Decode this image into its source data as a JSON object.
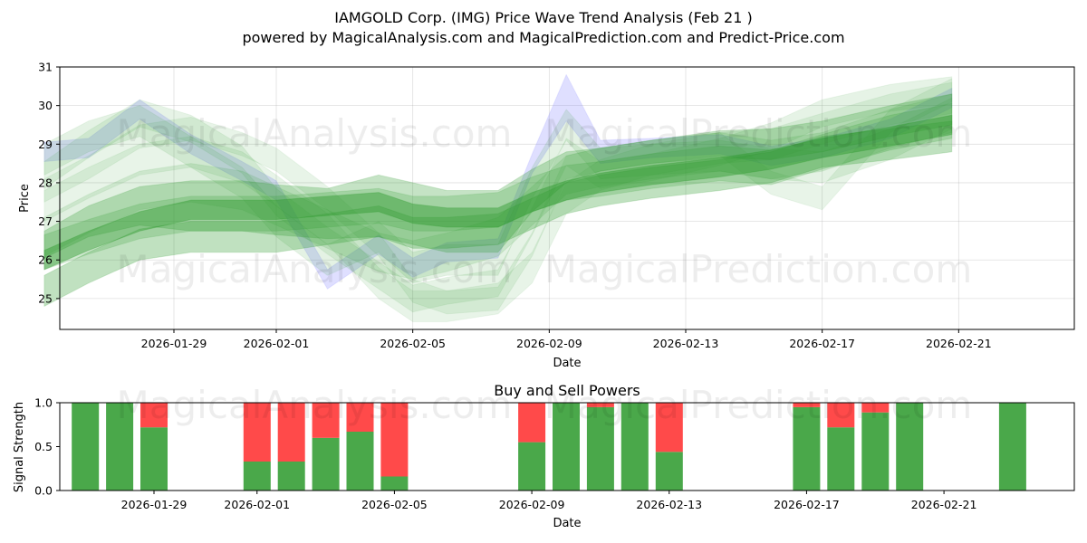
{
  "colors": {
    "green": "#2e9a2e",
    "blue": "#8080ff",
    "buy": "#4aa84a",
    "sell": "#ff4a4a"
  },
  "watermarks": [
    "MagicalAnalysis.com",
    "MagicalPrediction.com"
  ],
  "chart_data": [
    {
      "type": "area",
      "title": "IAMGOLD Corp. (IMG) Price Wave Trend Analysis (Feb 21 )",
      "subtitle": "powered by MagicalAnalysis.com and MagicalPrediction.com and Predict-Price.com",
      "xlabel": "Date",
      "ylabel": "Price",
      "ylim": [
        24.2,
        31
      ],
      "yticks": [
        "25",
        "26",
        "27",
        "28",
        "29",
        "30",
        "31"
      ],
      "xticks": [
        "2026-01-29",
        "2026-02-01",
        "2026-02-05",
        "2026-02-09",
        "2026-02-13",
        "2026-02-17",
        "2026-02-21"
      ],
      "grid": true,
      "series": [
        {
          "name": "wave-1",
          "color": "blue",
          "x": [
            -3.8,
            -2.5,
            -1,
            0.5,
            2,
            3,
            4.5,
            6,
            7,
            8,
            9.5,
            10.5,
            11.5,
            12.5,
            14,
            16,
            17.5,
            19,
            21,
            22.8
          ],
          "values": [
            28.8,
            28.9,
            29.9,
            29.0,
            28.3,
            27.8,
            25.5,
            26.4,
            25.8,
            26.2,
            26.3,
            28.5,
            30.2,
            28.8,
            28.9,
            29.0,
            28.7,
            28.9,
            29.4,
            30.2
          ],
          "width": [
            0.5,
            0.5,
            0.5,
            0.5,
            0.5,
            0.5,
            0.5,
            0.5,
            0.5,
            0.5,
            0.5,
            0.5,
            1.2,
            0.6,
            0.5,
            0.5,
            0.5,
            0.5,
            0.5,
            0.5
          ],
          "opacity": 0.25
        },
        {
          "name": "wave-2",
          "color": "green",
          "x": [
            -3.8,
            -2.5,
            -1,
            0.5,
            2,
            3,
            4.5,
            6,
            7,
            8,
            9.5,
            10.5,
            11.5,
            12.5,
            14,
            16,
            17.5,
            19,
            21,
            22.8
          ],
          "values": [
            28.6,
            29.2,
            29.6,
            28.8,
            28.0,
            27.0,
            26.0,
            26.6,
            25.8,
            26.0,
            26.0,
            28.0,
            29.5,
            28.5,
            28.6,
            28.7,
            28.5,
            28.4,
            29.0,
            29.8
          ],
          "width": [
            0.8,
            0.8,
            0.8,
            0.8,
            0.8,
            0.8,
            0.8,
            0.8,
            0.8,
            0.8,
            0.8,
            0.8,
            0.8,
            0.8,
            0.8,
            0.8,
            0.8,
            0.8,
            0.8,
            0.8
          ],
          "opacity": 0.13
        },
        {
          "name": "wave-3",
          "color": "green",
          "x": [
            -3.8,
            -2.5,
            -1,
            0.5,
            2,
            3,
            4.5,
            6,
            7,
            8,
            9.5,
            10.5,
            11.5,
            12.5,
            14,
            16,
            17.5,
            19,
            21,
            22.8
          ],
          "values": [
            28.2,
            29.0,
            29.8,
            29.4,
            28.6,
            27.5,
            26.5,
            25.6,
            25.0,
            25.2,
            25.4,
            27.0,
            28.8,
            28.2,
            28.4,
            28.8,
            29.2,
            29.8,
            30.2,
            30.4
          ],
          "width": [
            0.7,
            0.7,
            0.7,
            0.7,
            0.7,
            0.7,
            0.7,
            0.7,
            0.7,
            0.7,
            0.7,
            0.7,
            0.7,
            0.7,
            0.7,
            0.7,
            0.7,
            0.7,
            0.7,
            0.7
          ],
          "opacity": 0.12
        },
        {
          "name": "wave-4",
          "color": "green",
          "x": [
            -3.8,
            -2.5,
            -1,
            0.5,
            2,
            3,
            4.5,
            6,
            7,
            8,
            9.5,
            10.5,
            11.5,
            12.5,
            14,
            16,
            17.5,
            19,
            21,
            22.8
          ],
          "values": [
            27.8,
            28.4,
            29.2,
            29.4,
            29.0,
            28.6,
            27.6,
            26.4,
            25.2,
            24.9,
            25.0,
            26.4,
            28.4,
            28.6,
            28.8,
            29.0,
            28.0,
            27.6,
            29.6,
            30.4
          ],
          "width": [
            0.6,
            0.6,
            0.6,
            0.6,
            0.6,
            0.6,
            0.6,
            0.6,
            0.6,
            0.6,
            0.6,
            0.6,
            0.6,
            0.6,
            0.6,
            0.6,
            0.6,
            0.6,
            0.6,
            0.6
          ],
          "opacity": 0.11
        },
        {
          "name": "wave-5",
          "color": "green",
          "x": [
            -3.8,
            -2.5,
            -1,
            0.5,
            2,
            3,
            4.5,
            6,
            7,
            8,
            9.5,
            10.5,
            11.5,
            12.5,
            14,
            16,
            17.5,
            19,
            21,
            22.8
          ],
          "values": [
            27.4,
            28.0,
            28.6,
            28.8,
            28.4,
            27.8,
            26.8,
            25.4,
            24.8,
            24.8,
            25.0,
            25.8,
            27.6,
            28.2,
            28.6,
            28.9,
            29.0,
            29.4,
            29.9,
            30.2
          ],
          "width": [
            0.8,
            0.8,
            0.8,
            0.8,
            0.8,
            0.8,
            0.8,
            0.8,
            0.8,
            0.8,
            0.8,
            0.8,
            0.8,
            0.8,
            0.8,
            0.8,
            0.8,
            0.8,
            0.8,
            0.8
          ],
          "opacity": 0.11
        },
        {
          "name": "wave-6",
          "color": "green",
          "x": [
            -3.8,
            -2.5,
            -1,
            0.5,
            2,
            3,
            4.5,
            6,
            7,
            8,
            9.5,
            10.5,
            11.5,
            12.5,
            14,
            16,
            17.5,
            19,
            21,
            22.8
          ],
          "values": [
            26.6,
            27.2,
            27.8,
            28.0,
            27.8,
            27.4,
            26.8,
            26.2,
            26.0,
            26.2,
            26.6,
            27.4,
            28.2,
            28.4,
            28.6,
            28.8,
            28.6,
            28.8,
            29.4,
            29.8
          ],
          "width": [
            1.0,
            1.0,
            1.0,
            1.0,
            1.0,
            1.0,
            1.0,
            1.0,
            1.0,
            1.0,
            1.0,
            1.0,
            1.0,
            1.0,
            1.0,
            1.0,
            1.0,
            1.0,
            1.0,
            1.0
          ],
          "opacity": 0.15
        },
        {
          "name": "wave-7",
          "color": "green",
          "x": [
            -3.8,
            -2.5,
            -1,
            0.5,
            2,
            3,
            4.5,
            6,
            7,
            8,
            9.5,
            10.5,
            11.5,
            12.5,
            14,
            16,
            17.5,
            19,
            21,
            22.8
          ],
          "values": [
            26.4,
            27.0,
            27.4,
            27.4,
            27.4,
            27.3,
            27.2,
            27.4,
            27.2,
            27.0,
            27.0,
            27.8,
            28.4,
            28.6,
            28.8,
            29.0,
            29.0,
            29.2,
            29.6,
            29.9
          ],
          "width": [
            0.7,
            0.8,
            1.0,
            1.3,
            1.3,
            1.3,
            1.3,
            1.6,
            1.6,
            1.6,
            1.6,
            1.1,
            0.8,
            0.6,
            0.6,
            0.7,
            0.8,
            0.8,
            0.8,
            0.8
          ],
          "opacity": 0.28
        },
        {
          "name": "wave-8",
          "color": "green",
          "x": [
            -3.8,
            -2.5,
            -1,
            0.5,
            2,
            3,
            4.5,
            6,
            7,
            8,
            9.5,
            10.5,
            11.5,
            12.5,
            14,
            16,
            17.5,
            19,
            21,
            22.8
          ],
          "values": [
            25.2,
            25.8,
            26.4,
            26.6,
            26.6,
            26.6,
            26.8,
            27.0,
            26.7,
            26.7,
            26.8,
            27.2,
            27.6,
            27.8,
            28.0,
            28.2,
            28.4,
            28.8,
            29.0,
            29.2
          ],
          "width": [
            0.8,
            0.8,
            0.8,
            0.8,
            0.8,
            0.8,
            0.8,
            0.8,
            0.8,
            0.8,
            0.8,
            0.8,
            0.8,
            0.8,
            0.8,
            0.8,
            0.8,
            0.8,
            0.8,
            0.8
          ],
          "opacity": 0.3
        },
        {
          "name": "wave-9",
          "color": "green",
          "x": [
            -3.8,
            -2.5,
            -1,
            0.5,
            2,
            3,
            4.5,
            6,
            7,
            8,
            9.5,
            10.5,
            11.5,
            12.5,
            14,
            16,
            17.5,
            19,
            21,
            22.8
          ],
          "values": [
            26.0,
            26.5,
            27.0,
            27.3,
            27.3,
            27.3,
            27.4,
            27.5,
            27.2,
            27.1,
            27.1,
            27.5,
            27.8,
            28.0,
            28.2,
            28.4,
            28.6,
            28.9,
            29.2,
            29.5
          ],
          "width": [
            0.5,
            0.5,
            0.5,
            0.5,
            0.5,
            0.5,
            0.5,
            0.5,
            0.5,
            0.5,
            0.5,
            0.5,
            0.5,
            0.5,
            0.5,
            0.5,
            0.5,
            0.5,
            0.5,
            0.5
          ],
          "opacity": 0.45
        },
        {
          "name": "wave-10",
          "color": "green",
          "x": [
            -3.8,
            -2.5,
            -1,
            0.5,
            2,
            3,
            4.5,
            6,
            7,
            8,
            9.5,
            10.5,
            11.5,
            12.5,
            14,
            16,
            17.5,
            19,
            21,
            22.8
          ],
          "values": [
            26.2,
            26.6,
            27.0,
            27.2,
            27.2,
            27.2,
            27.3,
            27.4,
            27.2,
            27.2,
            27.3,
            27.7,
            28.0,
            28.1,
            28.3,
            28.5,
            28.4,
            28.8,
            29.3,
            29.6
          ],
          "width": [
            0.9,
            0.9,
            0.9,
            0.9,
            0.9,
            0.9,
            0.9,
            0.9,
            0.9,
            0.9,
            0.9,
            0.9,
            0.9,
            0.9,
            0.9,
            0.9,
            0.9,
            0.9,
            0.9,
            0.9
          ],
          "opacity": 0.22
        }
      ]
    },
    {
      "type": "bar",
      "title": "Buy and Sell Powers",
      "xlabel": "Date",
      "ylabel": "Signal Strength",
      "ylim": [
        0,
        1
      ],
      "yticks": [
        "0.0",
        "0.5",
        "1.0"
      ],
      "xticks": [
        "2026-01-29",
        "2026-02-01",
        "2026-02-05",
        "2026-02-09",
        "2026-02-13",
        "2026-02-17",
        "2026-02-21"
      ],
      "x": [
        -2,
        -1,
        0,
        3,
        4,
        5,
        6,
        7,
        11,
        12,
        13,
        14,
        15,
        19,
        20,
        21,
        22,
        25
      ],
      "buy": [
        1.0,
        1.0,
        0.72,
        0.33,
        0.33,
        0.6,
        0.67,
        0.16,
        0.55,
        1.0,
        0.95,
        1.0,
        0.44,
        0.95,
        0.72,
        0.89,
        1.0,
        1.0
      ],
      "sell": [
        0.0,
        0.0,
        0.28,
        0.67,
        0.67,
        0.4,
        0.33,
        0.84,
        0.45,
        0.0,
        0.05,
        0.0,
        0.56,
        0.05,
        0.28,
        0.11,
        0.0,
        0.0
      ]
    }
  ]
}
